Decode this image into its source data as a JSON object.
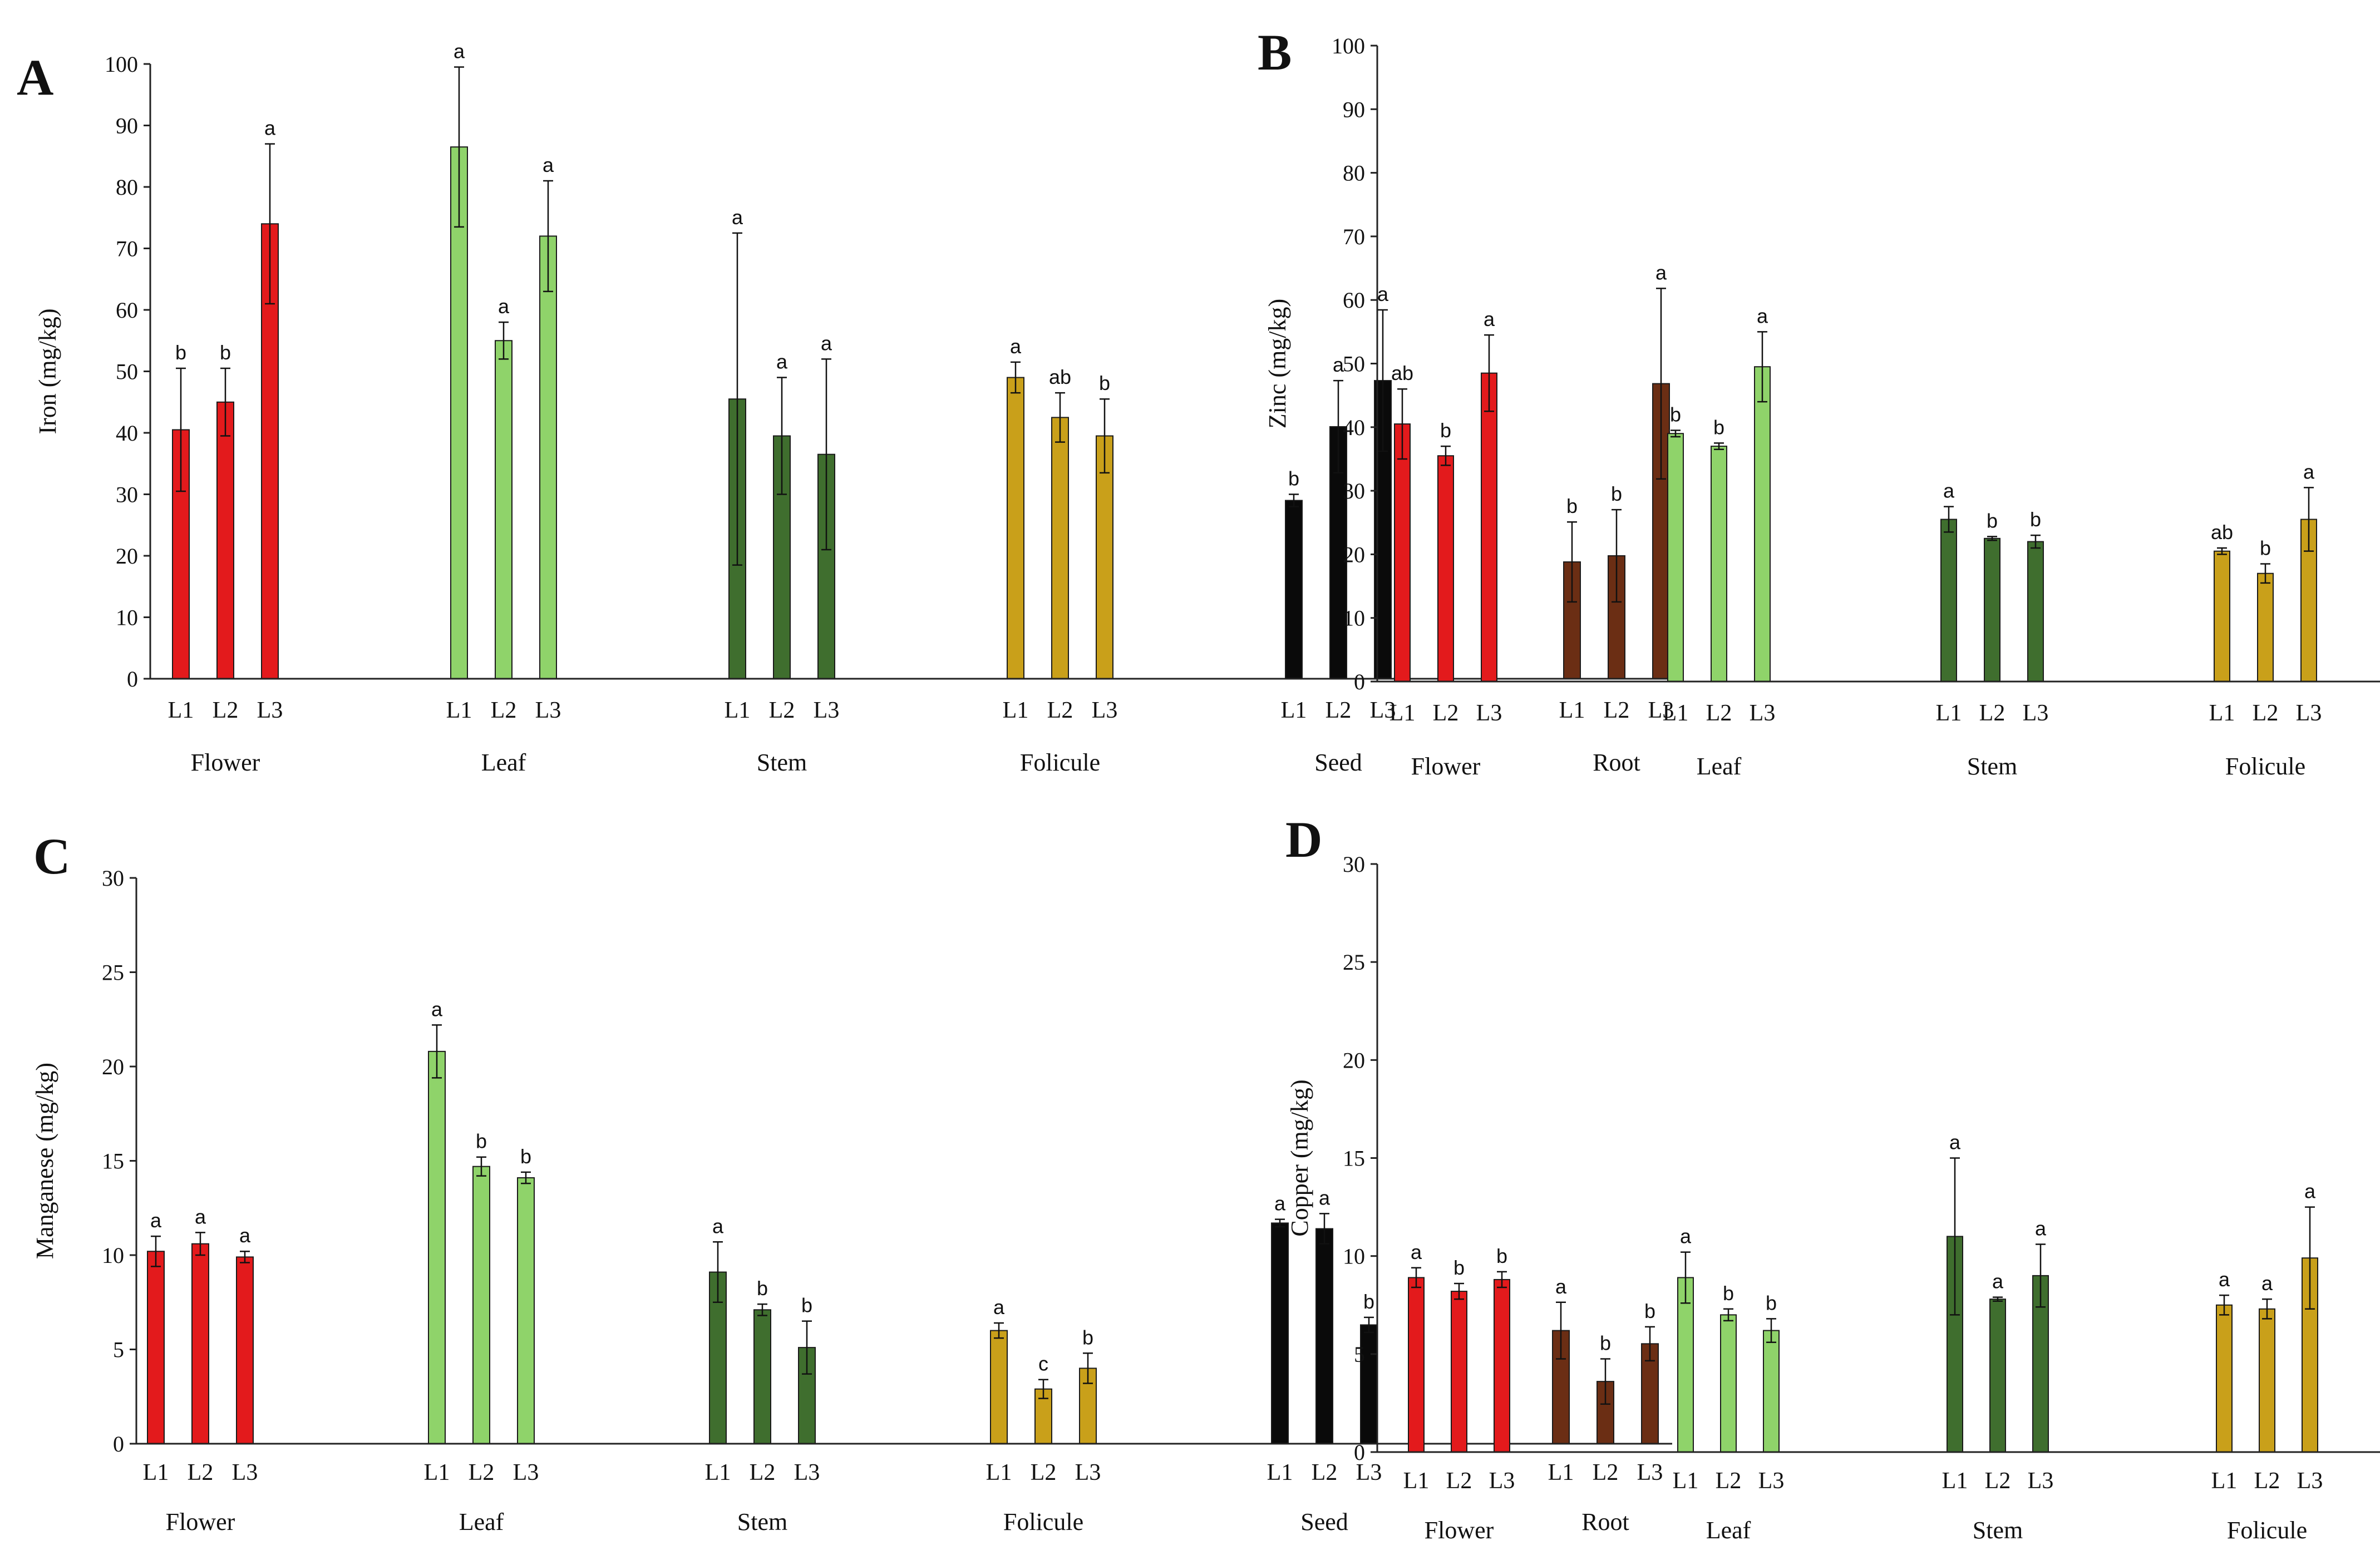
{
  "colors": {
    "Flower": "#e31a1c",
    "Leaf": "#8fd36a",
    "Stem": "#3f6e2e",
    "Folicule": "#c9a01a",
    "Seed": "#0a0a0a",
    "Root": "#6b2e14"
  },
  "chart_data": [
    {
      "panel": "A",
      "type": "bar",
      "ylabel": "Iron (mg/kg)",
      "ylim": [
        0,
        100
      ],
      "yticks": [
        0,
        10,
        20,
        30,
        40,
        50,
        60,
        70,
        80,
        90,
        100
      ],
      "groups": [
        "Flower",
        "Leaf",
        "Stem",
        "Folicule",
        "Seed",
        "Root"
      ],
      "categories": [
        "L1",
        "L2",
        "L3"
      ],
      "series": [
        {
          "group": "Flower",
          "values": [
            40.5,
            45,
            74
          ],
          "errors": [
            10,
            5.5,
            13
          ],
          "labels": [
            "b",
            "b",
            "a"
          ]
        },
        {
          "group": "Leaf",
          "values": [
            86.5,
            55,
            72
          ],
          "errors": [
            13,
            3,
            9
          ],
          "labels": [
            "a",
            "a",
            "a"
          ]
        },
        {
          "group": "Stem",
          "values": [
            45.5,
            39.5,
            36.5
          ],
          "errors": [
            27,
            9.5,
            15.5
          ],
          "labels": [
            "a",
            "a",
            "a"
          ]
        },
        {
          "group": "Folicule",
          "values": [
            49,
            42.5,
            39.5
          ],
          "errors": [
            2.5,
            4,
            6
          ],
          "labels": [
            "a",
            "ab",
            "b"
          ]
        },
        {
          "group": "Seed",
          "values": [
            29,
            41,
            48.5
          ],
          "errors": [
            1,
            7.5,
            11.5
          ],
          "labels": [
            "b",
            "a",
            "a"
          ]
        },
        {
          "group": "Root",
          "values": [
            19,
            20,
            48
          ],
          "errors": [
            6.5,
            7.5,
            15.5
          ],
          "labels": [
            "b",
            "b",
            "a"
          ]
        }
      ]
    },
    {
      "panel": "B",
      "type": "bar",
      "ylabel": "Zinc (mg/kg)",
      "ylim": [
        0,
        100
      ],
      "yticks": [
        0,
        10,
        20,
        30,
        40,
        50,
        60,
        70,
        80,
        90,
        100
      ],
      "groups": [
        "Flower",
        "Leaf",
        "Stem",
        "Folicule",
        "Seed",
        "Root"
      ],
      "categories": [
        "L1",
        "L2",
        "L3"
      ],
      "series": [
        {
          "group": "Flower",
          "values": [
            40.5,
            35.5,
            48.5
          ],
          "errors": [
            5.5,
            1.5,
            6
          ],
          "labels": [
            "ab",
            "b",
            "a"
          ]
        },
        {
          "group": "Leaf",
          "values": [
            39,
            37,
            49.5
          ],
          "errors": [
            0.5,
            0.5,
            5.5
          ],
          "labels": [
            "b",
            "b",
            "a"
          ]
        },
        {
          "group": "Stem",
          "values": [
            25.5,
            22.5,
            22
          ],
          "errors": [
            2,
            0.3,
            1
          ],
          "labels": [
            "a",
            "b",
            "b"
          ]
        },
        {
          "group": "Folicule",
          "values": [
            20.5,
            17,
            25.5
          ],
          "errors": [
            0.5,
            1.5,
            5
          ],
          "labels": [
            "ab",
            "b",
            "a"
          ]
        },
        {
          "group": "Seed",
          "values": [
            35,
            35,
            36.5
          ],
          "errors": [
            0.3,
            4,
            1
          ],
          "labels": [
            "a",
            "a",
            "a"
          ]
        },
        {
          "group": "Root",
          "values": [
            20,
            23.5,
            44.5
          ],
          "errors": [
            3.5,
            5,
            13
          ],
          "labels": [
            "b",
            "b",
            "a"
          ]
        }
      ]
    },
    {
      "panel": "C",
      "type": "bar",
      "ylabel": "Manganese (mg/kg)",
      "ylim": [
        0,
        30
      ],
      "yticks": [
        0,
        5,
        10,
        15,
        20,
        25,
        30
      ],
      "groups": [
        "Flower",
        "Leaf",
        "Stem",
        "Folicule",
        "Seed",
        "Root"
      ],
      "categories": [
        "L1",
        "L2",
        "L3"
      ],
      "series": [
        {
          "group": "Flower",
          "values": [
            10.2,
            10.6,
            9.9
          ],
          "errors": [
            0.8,
            0.6,
            0.3
          ],
          "labels": [
            "a",
            "a",
            "a"
          ]
        },
        {
          "group": "Leaf",
          "values": [
            20.8,
            14.7,
            14.1
          ],
          "errors": [
            1.4,
            0.5,
            0.3
          ],
          "labels": [
            "a",
            "b",
            "b"
          ]
        },
        {
          "group": "Stem",
          "values": [
            9.1,
            7.1,
            5.1
          ],
          "errors": [
            1.6,
            0.3,
            1.4
          ],
          "labels": [
            "a",
            "b",
            "b"
          ]
        },
        {
          "group": "Folicule",
          "values": [
            6,
            2.9,
            4
          ],
          "errors": [
            0.4,
            0.5,
            0.8
          ],
          "labels": [
            "a",
            "c",
            "b"
          ]
        },
        {
          "group": "Seed",
          "values": [
            11.7,
            11.4,
            6.3
          ],
          "errors": [
            0.2,
            0.8,
            0.4
          ],
          "labels": [
            "a",
            "a",
            "b"
          ]
        },
        {
          "group": "Root",
          "values": [
            6,
            3.3,
            5.3
          ],
          "errors": [
            1.5,
            1.2,
            0.9
          ],
          "labels": [
            "a",
            "b",
            "b"
          ]
        }
      ]
    },
    {
      "panel": "D",
      "type": "bar",
      "ylabel": "Copper (mg/kg)",
      "ylim": [
        0,
        30
      ],
      "yticks": [
        0,
        5,
        10,
        15,
        20,
        25,
        30
      ],
      "groups": [
        "Flower",
        "Leaf",
        "Stem",
        "Folicule",
        "Seed",
        "Root"
      ],
      "categories": [
        "L1",
        "L2",
        "L3"
      ],
      "series": [
        {
          "group": "Flower",
          "values": [
            8.9,
            8.2,
            8.8
          ],
          "errors": [
            0.5,
            0.4,
            0.4
          ],
          "labels": [
            "a",
            "b",
            "b"
          ]
        },
        {
          "group": "Leaf",
          "values": [
            8.9,
            7,
            6.2
          ],
          "errors": [
            1.3,
            0.3,
            0.6
          ],
          "labels": [
            "a",
            "b",
            "b"
          ]
        },
        {
          "group": "Stem",
          "values": [
            11,
            7.8,
            9
          ],
          "errors": [
            4,
            0.1,
            1.6
          ],
          "labels": [
            "a",
            "a",
            "a"
          ]
        },
        {
          "group": "Folicule",
          "values": [
            7.5,
            7.3,
            9.9
          ],
          "errors": [
            0.5,
            0.5,
            2.6
          ],
          "labels": [
            "a",
            "a",
            "a"
          ]
        },
        {
          "group": "Seed",
          "values": [
            10,
            11,
            8.1
          ],
          "errors": [
            0,
            0.5,
            0.2
          ],
          "labels": [
            "b",
            "a",
            "c"
          ]
        },
        {
          "group": "Root",
          "values": [
            6.1,
            5.4,
            7.7
          ],
          "errors": [
            1.2,
            0.2,
            3.6
          ],
          "labels": [
            "a",
            "a",
            "a"
          ]
        }
      ]
    }
  ]
}
